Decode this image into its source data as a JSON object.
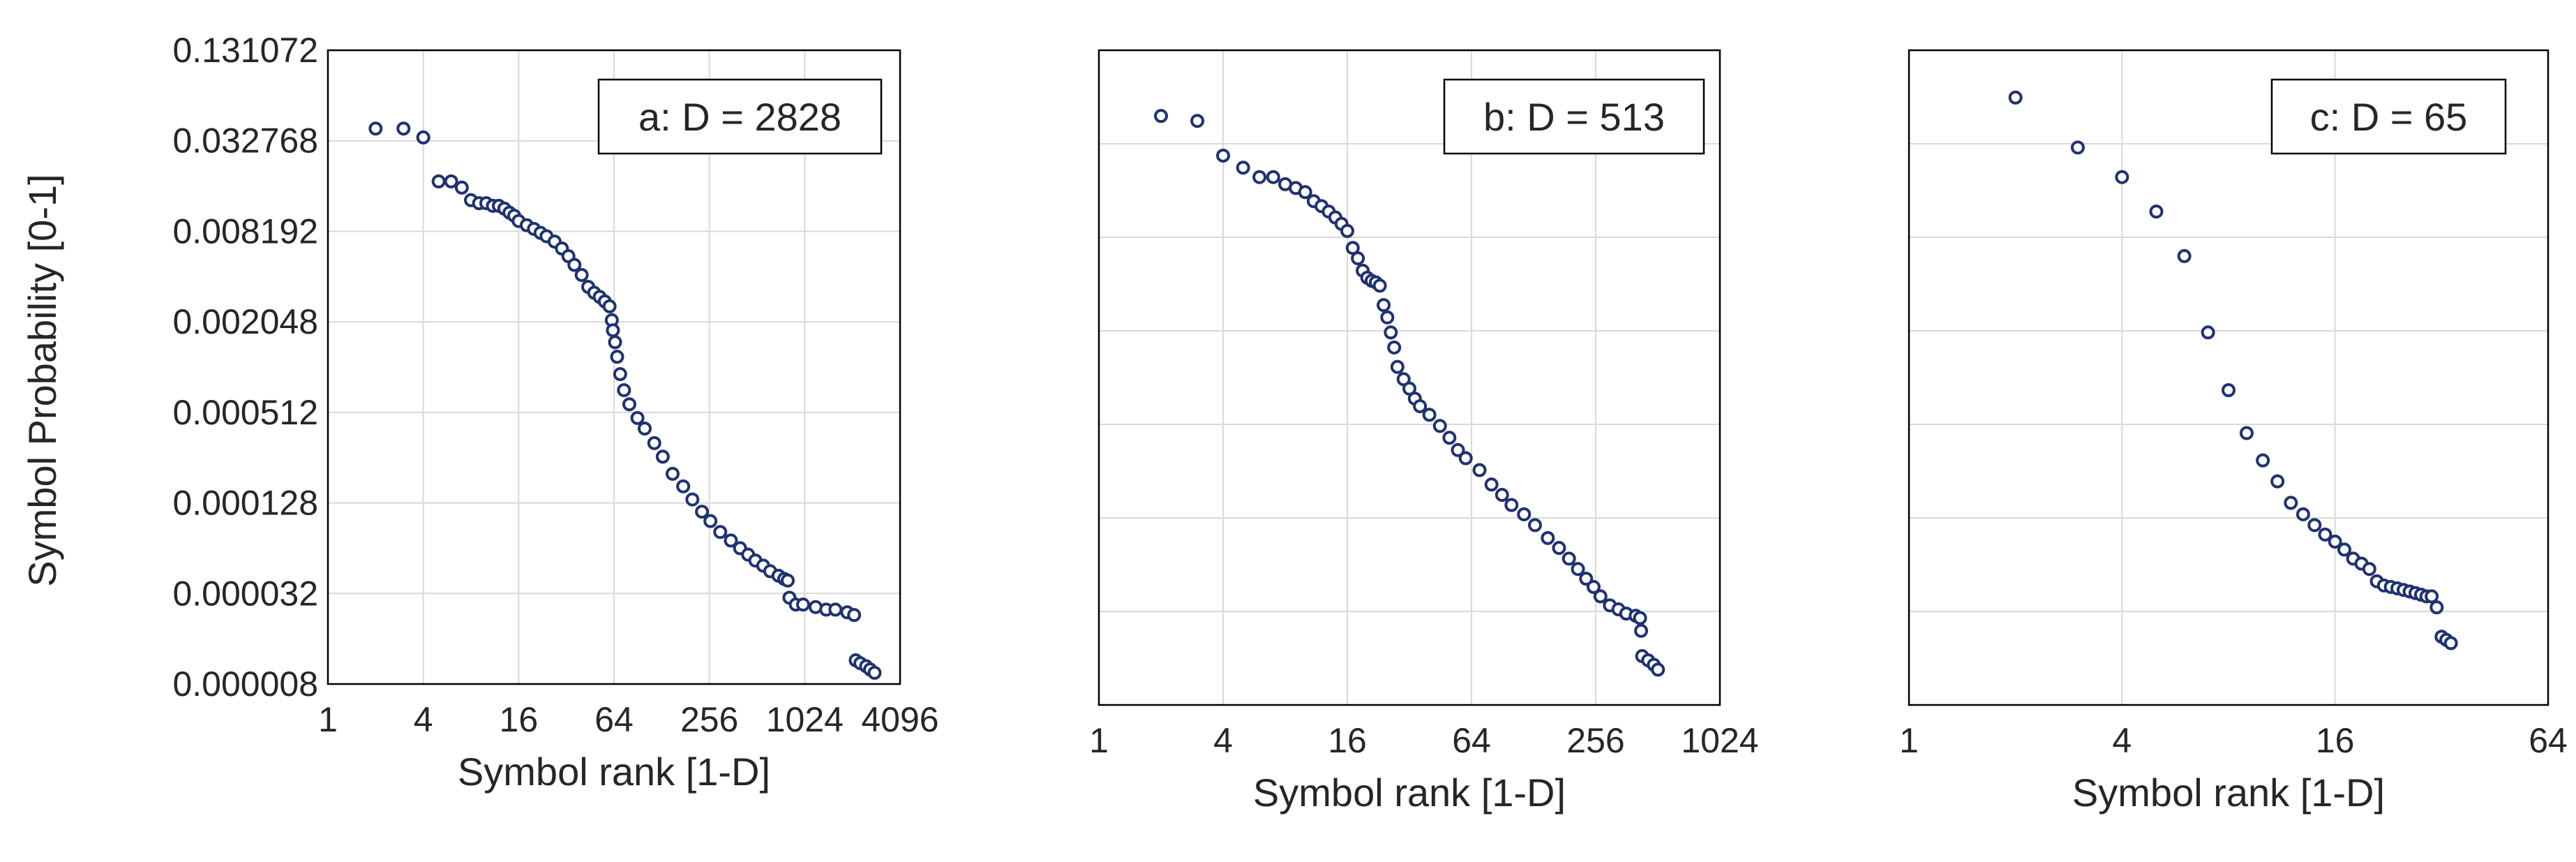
{
  "chart_data": [
    {
      "type": "scatter",
      "panel_label": "a: D = 2828",
      "xlabel": "Symbol rank [1-D]",
      "ylabel": "Symbol Probability [0-1]",
      "x_scale": "log2",
      "y_scale": "log2",
      "xlim": [
        1,
        4096
      ],
      "ylim": [
        8e-06,
        0.131072
      ],
      "x_ticks": [
        "1",
        "4",
        "16",
        "64",
        "256",
        "1024",
        "4096"
      ],
      "y_ticks": [
        "0.131072",
        "0.032768",
        "0.008192",
        "0.002048",
        "0.000512",
        "0.000128",
        "0.000032",
        "0.000008"
      ],
      "grid": true,
      "legend": "top-right",
      "series": [
        {
          "name": "a: D = 2828",
          "points": [
            [
              2,
              0.0395
            ],
            [
              3,
              0.0395
            ],
            [
              4,
              0.0345
            ],
            [
              5,
              0.0176
            ],
            [
              6,
              0.0176
            ],
            [
              7,
              0.016
            ],
            [
              8,
              0.0132
            ],
            [
              9,
              0.0126
            ],
            [
              10,
              0.0126
            ],
            [
              11,
              0.0121
            ],
            [
              12,
              0.0121
            ],
            [
              13,
              0.0116
            ],
            [
              14,
              0.0109
            ],
            [
              15,
              0.0104
            ],
            [
              16,
              0.0096
            ],
            [
              18,
              0.009
            ],
            [
              20,
              0.0085
            ],
            [
              22,
              0.008
            ],
            [
              24,
              0.0076
            ],
            [
              27,
              0.007
            ],
            [
              30,
              0.0063
            ],
            [
              33,
              0.0056
            ],
            [
              36,
              0.0049
            ],
            [
              40,
              0.0042
            ],
            [
              44,
              0.0035
            ],
            [
              48,
              0.0032
            ],
            [
              52,
              0.003
            ],
            [
              56,
              0.0028
            ],
            [
              60,
              0.0026
            ],
            [
              62,
              0.0021
            ],
            [
              63,
              0.0018
            ],
            [
              65,
              0.0015
            ],
            [
              67,
              0.0012
            ],
            [
              70,
              0.00092
            ],
            [
              74,
              0.00072
            ],
            [
              80,
              0.00058
            ],
            [
              90,
              0.00047
            ],
            [
              100,
              0.0004
            ],
            [
              115,
              0.00032
            ],
            [
              130,
              0.00026
            ],
            [
              150,
              0.0002
            ],
            [
              175,
              0.000165
            ],
            [
              200,
              0.000135
            ],
            [
              230,
              0.000112
            ],
            [
              260,
              9.7e-05
            ],
            [
              300,
              8.2e-05
            ],
            [
              350,
              7.2e-05
            ],
            [
              400,
              6.4e-05
            ],
            [
              450,
              5.8e-05
            ],
            [
              500,
              5.3e-05
            ],
            [
              560,
              4.9e-05
            ],
            [
              620,
              4.5e-05
            ],
            [
              700,
              4.2e-05
            ],
            [
              760,
              4e-05
            ],
            [
              800,
              3.9e-05
            ],
            [
              820,
              3e-05
            ],
            [
              900,
              2.7e-05
            ],
            [
              1000,
              2.7e-05
            ],
            [
              1200,
              2.6e-05
            ],
            [
              1400,
              2.5e-05
            ],
            [
              1600,
              2.5e-05
            ],
            [
              1900,
              2.4e-05
            ],
            [
              2100,
              2.3e-05
            ],
            [
              2150,
              1.15e-05
            ],
            [
              2300,
              1.1e-05
            ],
            [
              2500,
              1.05e-05
            ],
            [
              2650,
              1e-05
            ],
            [
              2828,
              9.5e-06
            ]
          ]
        }
      ]
    },
    {
      "type": "scatter",
      "panel_label": "b: D = 513",
      "xlabel": "Symbol rank [1-D]",
      "ylabel": "",
      "x_scale": "log2",
      "y_scale": "log2",
      "xlim": [
        1,
        1024
      ],
      "ylim": [
        8e-06,
        0.131072
      ],
      "x_ticks": [
        "1",
        "4",
        "16",
        "64",
        "256",
        "1024"
      ],
      "y_ticks": [],
      "grid": true,
      "legend": "top-right",
      "series": [
        {
          "name": "b: D = 513",
          "points": [
            [
              2,
              0.0495
            ],
            [
              3,
              0.046
            ],
            [
              4,
              0.0275
            ],
            [
              5,
              0.023
            ],
            [
              6,
              0.02
            ],
            [
              7,
              0.02
            ],
            [
              8,
              0.018
            ],
            [
              9,
              0.017
            ],
            [
              10,
              0.016
            ],
            [
              11,
              0.014
            ],
            [
              12,
              0.013
            ],
            [
              13,
              0.012
            ],
            [
              14,
              0.011
            ],
            [
              15,
              0.01
            ],
            [
              16,
              0.009
            ],
            [
              17,
              0.007
            ],
            [
              18,
              0.006
            ],
            [
              19,
              0.005
            ],
            [
              20,
              0.0045
            ],
            [
              21,
              0.0043
            ],
            [
              22,
              0.0042
            ],
            [
              23,
              0.004
            ],
            [
              24,
              0.003
            ],
            [
              25,
              0.0025
            ],
            [
              26,
              0.002
            ],
            [
              27,
              0.0016
            ],
            [
              28,
              0.0012
            ],
            [
              30,
              0.001
            ],
            [
              32,
              0.00087
            ],
            [
              34,
              0.00075
            ],
            [
              36,
              0.00067
            ],
            [
              40,
              0.00059
            ],
            [
              45,
              0.0005
            ],
            [
              50,
              0.00042
            ],
            [
              55,
              0.00035
            ],
            [
              60,
              0.00031
            ],
            [
              70,
              0.00026
            ],
            [
              80,
              0.00021
            ],
            [
              90,
              0.00018
            ],
            [
              100,
              0.000155
            ],
            [
              115,
              0.000135
            ],
            [
              130,
              0.000115
            ],
            [
              150,
              9.5e-05
            ],
            [
              170,
              8.2e-05
            ],
            [
              190,
              7e-05
            ],
            [
              210,
              6e-05
            ],
            [
              230,
              5.2e-05
            ],
            [
              250,
              4.6e-05
            ],
            [
              270,
              4e-05
            ],
            [
              300,
              3.5e-05
            ],
            [
              330,
              3.3e-05
            ],
            [
              360,
              3.1e-05
            ],
            [
              400,
              3e-05
            ],
            [
              420,
              2.9e-05
            ],
            [
              425,
              2.4e-05
            ],
            [
              430,
              1.65e-05
            ],
            [
              460,
              1.55e-05
            ],
            [
              490,
              1.45e-05
            ],
            [
              513,
              1.35e-05
            ]
          ]
        }
      ]
    },
    {
      "type": "scatter",
      "panel_label": "c: D = 65",
      "xlabel": "Symbol rank [1-D]",
      "ylabel": "",
      "x_scale": "log2",
      "y_scale": "log2",
      "xlim": [
        1,
        64
      ],
      "ylim": [
        8e-06,
        0.131072
      ],
      "x_ticks": [
        "1",
        "4",
        "16",
        "64"
      ],
      "y_ticks": [],
      "grid": true,
      "legend": "top-right",
      "series": [
        {
          "name": "c: D = 65",
          "points": [
            [
              2,
              0.065
            ],
            [
              3,
              0.031
            ],
            [
              4,
              0.02
            ],
            [
              5,
              0.012
            ],
            [
              6,
              0.0062
            ],
            [
              7,
              0.002
            ],
            [
              8,
              0.00085
            ],
            [
              9,
              0.00045
            ],
            [
              10,
              0.0003
            ],
            [
              11,
              0.00022
            ],
            [
              12,
              0.00016
            ],
            [
              13,
              0.000135
            ],
            [
              14,
              0.000115
            ],
            [
              15,
              0.0001
            ],
            [
              16,
              9e-05
            ],
            [
              17,
              8e-05
            ],
            [
              18,
              7e-05
            ],
            [
              19,
              6.5e-05
            ],
            [
              20,
              6e-05
            ],
            [
              21,
              5e-05
            ],
            [
              22,
              4.7e-05
            ],
            [
              23,
              4.6e-05
            ],
            [
              24,
              4.5e-05
            ],
            [
              25,
              4.4e-05
            ],
            [
              26,
              4.3e-05
            ],
            [
              27,
              4.2e-05
            ],
            [
              28,
              4.1e-05
            ],
            [
              29,
              4e-05
            ],
            [
              30,
              4e-05
            ],
            [
              31,
              3.4e-05
            ],
            [
              32,
              2.2e-05
            ],
            [
              33,
              2.1e-05
            ],
            [
              34,
              2e-05
            ]
          ]
        }
      ]
    }
  ]
}
